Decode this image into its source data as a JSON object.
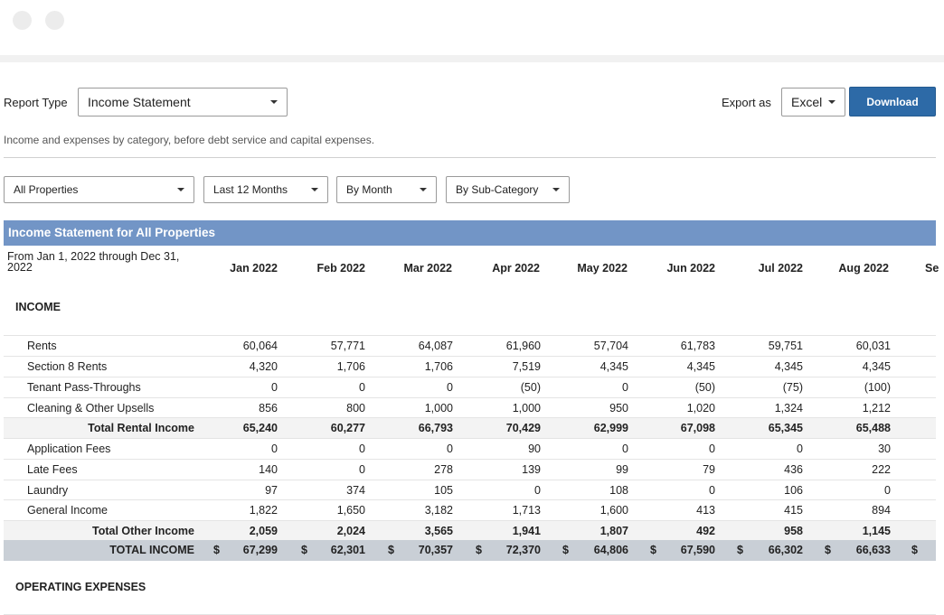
{
  "controls": {
    "report_type_label": "Report Type",
    "report_type_value": "Income Statement",
    "export_label": "Export as",
    "export_value": "Excel",
    "download_label": "Download",
    "description": "Income and expenses by category, before debt service and capital expenses."
  },
  "filters": {
    "property": "All Properties",
    "range": "Last 12 Months",
    "period": "By Month",
    "grouping": "By Sub-Category"
  },
  "report": {
    "title": "Income Statement for All Properties",
    "period_label": "From Jan 1, 2022 through Dec 31, 2022",
    "columns": [
      "Jan 2022",
      "Feb 2022",
      "Mar 2022",
      "Apr 2022",
      "May 2022",
      "Jun 2022",
      "Jul 2022",
      "Aug 2022",
      "Se"
    ],
    "income_title": "INCOME",
    "rows": [
      {
        "label": "Rents",
        "type": "line",
        "values": [
          "60,064",
          "57,771",
          "64,087",
          "61,960",
          "57,704",
          "61,783",
          "59,751",
          "60,031"
        ]
      },
      {
        "label": "Section 8 Rents",
        "type": "line",
        "values": [
          "4,320",
          "1,706",
          "1,706",
          "7,519",
          "4,345",
          "4,345",
          "4,345",
          "4,345"
        ]
      },
      {
        "label": "Tenant Pass-Throughs",
        "type": "line",
        "values": [
          "0",
          "0",
          "0",
          "(50)",
          "0",
          "(50)",
          "(75)",
          "(100)"
        ]
      },
      {
        "label": "Cleaning & Other Upsells",
        "type": "line",
        "values": [
          "856",
          "800",
          "1,000",
          "1,000",
          "950",
          "1,020",
          "1,324",
          "1,212"
        ]
      },
      {
        "label": "Total Rental Income",
        "type": "total",
        "values": [
          "65,240",
          "60,277",
          "66,793",
          "70,429",
          "62,999",
          "67,098",
          "65,345",
          "65,488"
        ]
      },
      {
        "label": "Application Fees",
        "type": "line",
        "values": [
          "0",
          "0",
          "0",
          "90",
          "0",
          "0",
          "0",
          "30"
        ]
      },
      {
        "label": "Late Fees",
        "type": "line",
        "values": [
          "140",
          "0",
          "278",
          "139",
          "99",
          "79",
          "436",
          "222"
        ]
      },
      {
        "label": "Laundry",
        "type": "line",
        "values": [
          "97",
          "374",
          "105",
          "0",
          "108",
          "0",
          "106",
          "0"
        ]
      },
      {
        "label": "General Income",
        "type": "line",
        "values": [
          "1,822",
          "1,650",
          "3,182",
          "1,713",
          "1,600",
          "413",
          "415",
          "894"
        ]
      },
      {
        "label": "Total Other Income",
        "type": "total",
        "values": [
          "2,059",
          "2,024",
          "3,565",
          "1,941",
          "1,807",
          "492",
          "958",
          "1,145"
        ]
      },
      {
        "label": "TOTAL INCOME",
        "type": "grand",
        "currency": "$",
        "values": [
          "67,299",
          "62,301",
          "70,357",
          "72,370",
          "64,806",
          "67,590",
          "66,302",
          "66,633"
        ]
      }
    ],
    "expenses_title": "OPERATING EXPENSES"
  }
}
